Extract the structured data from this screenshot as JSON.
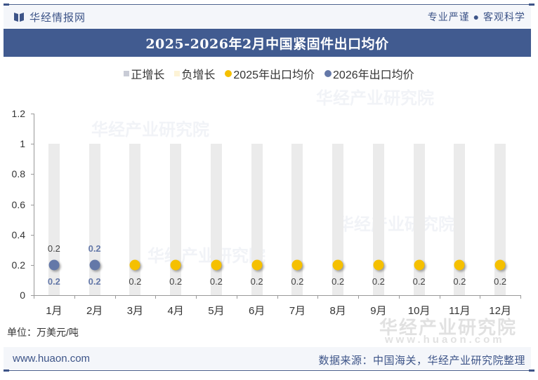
{
  "header": {
    "brand": "华经情报网",
    "slogan": "专业严谨 ● 客观科学",
    "title": "2025-2026年2月中国紧固件出口均价"
  },
  "legend": [
    {
      "label": "正增长",
      "type": "square",
      "color": "#c9ccd6"
    },
    {
      "label": "负增长",
      "type": "square",
      "color": "#fdf3d6"
    },
    {
      "label": "2025年出口均价",
      "type": "dot",
      "color": "#f5c000"
    },
    {
      "label": "2026年出口均价",
      "type": "dot",
      "color": "#6478a8"
    }
  ],
  "chart_data": {
    "type": "scatter",
    "title": "2025-2026年2月中国紧固件出口均价",
    "xlabel": "",
    "ylabel": "万美元/吨",
    "categories": [
      "1月",
      "2月",
      "3月",
      "4月",
      "5月",
      "6月",
      "7月",
      "8月",
      "9月",
      "10月",
      "11月",
      "12月"
    ],
    "series": [
      {
        "name": "2025年出口均价",
        "color": "#f5c000",
        "values": [
          0.2,
          0.2,
          0.2,
          0.2,
          0.2,
          0.2,
          0.2,
          0.2,
          0.2,
          0.2,
          0.2,
          0.2
        ]
      },
      {
        "name": "2026年出口均价",
        "color": "#6478a8",
        "values": [
          0.2,
          0.2,
          null,
          null,
          null,
          null,
          null,
          null,
          null,
          null,
          null,
          null
        ]
      }
    ],
    "background_bars": {
      "value": 1,
      "color": "#ebebeb"
    },
    "growth_legend": [
      "正增长",
      "负增长"
    ],
    "ylim": [
      0,
      1.2
    ],
    "yticks": [
      "0",
      "0.2",
      "0.4",
      "0.6",
      "0.8",
      "1",
      "1.2"
    ],
    "grid": false,
    "legend_position": "top"
  },
  "footer": {
    "unit": "单位：万美元/吨",
    "url": "www.huaon.com",
    "source": "数据来源：中国海关，华经产业研究院整理"
  },
  "watermark": {
    "name": "华经产业研究院",
    "url": "www.huaon.com"
  }
}
